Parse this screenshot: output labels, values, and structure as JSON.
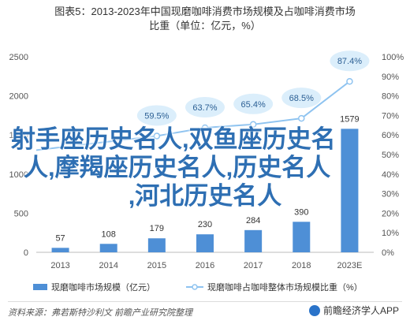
{
  "title_line1": "图表5：2013-2023年中国现磨咖啡消费市场规模及占咖啡消费市场",
  "title_line2": "比重（单位：亿元，%）",
  "overlay": {
    "line1": "射手座历史名人,双鱼座历史名",
    "line2": "人,摩羯座历史名人,历史名人",
    "line3": ",河北历史名人"
  },
  "legend": {
    "bars": "现磨咖啡市场规模（亿元）",
    "line": "现磨咖啡占咖啡整体市场规模比重（%）"
  },
  "footer": {
    "source": "资料来源：弗若斯特沙利文 前瞻产业研究院整理",
    "brand": "前瞻经济学人APP"
  },
  "colors": {
    "bar": "#4e8fd6",
    "line": "#8ec3f0",
    "point_label_bg": "#dbeefb",
    "axis_text": "#555555"
  },
  "chart_data": {
    "type": "bar",
    "categories": [
      "2013",
      "2014",
      "2015",
      "2016",
      "2017",
      "2018",
      "2023E"
    ],
    "series": [
      {
        "name": "现磨咖啡市场规模（亿元）",
        "type": "bar",
        "axis": "left",
        "values": [
          57,
          108,
          179,
          230,
          284,
          390,
          1579
        ],
        "labels": [
          "57",
          "108",
          "179",
          "230",
          "284",
          "390",
          "1579"
        ]
      },
      {
        "name": "现磨咖啡占咖啡整体市场规模比重（%）",
        "type": "line",
        "axis": "right",
        "values": [
          null,
          null,
          59.5,
          63.7,
          65.4,
          68.5,
          87.4
        ],
        "labels": [
          "",
          "",
          "59.5%",
          "63.7%",
          "65.4%",
          "68.5%",
          "87.4%"
        ]
      }
    ],
    "y_left": {
      "ticks": [
        "0",
        "500",
        "1000",
        "1500",
        "2000",
        "2500"
      ],
      "ylim": [
        0,
        2500
      ]
    },
    "y_right": {
      "ticks": [
        "0%",
        "10%",
        "20%",
        "30%",
        "40%",
        "50%",
        "60%",
        "70%",
        "80%",
        "90%",
        "100%"
      ],
      "ylim": [
        0,
        100
      ]
    },
    "grid": false,
    "legend_position": "bottom"
  }
}
